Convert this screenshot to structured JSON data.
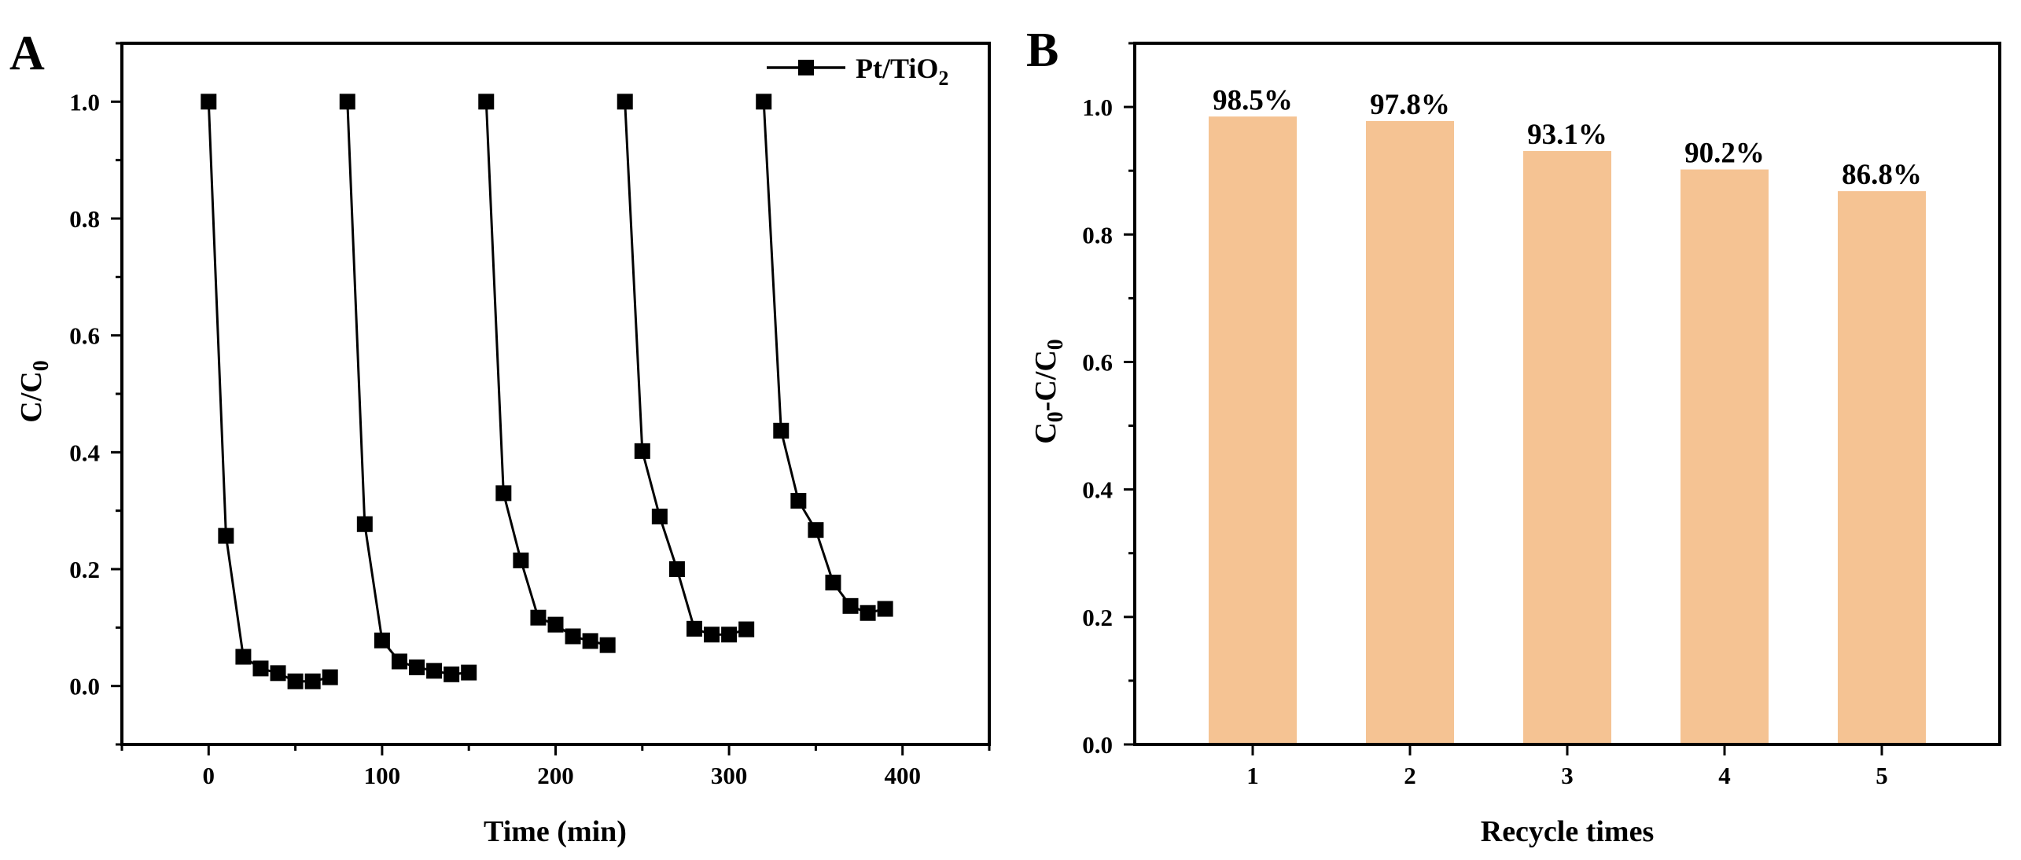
{
  "figure": {
    "panel_labels": [
      "A",
      "B"
    ]
  },
  "chart_data": [
    {
      "type": "line",
      "panel": "A",
      "xlabel": "Time (min)",
      "ylabel": {
        "main": "C/C",
        "sub": "0"
      },
      "xlim": [
        -50,
        450
      ],
      "ylim": [
        -0.1,
        1.1
      ],
      "xticks": [
        0,
        100,
        200,
        300,
        400
      ],
      "yticks": [
        0.0,
        0.2,
        0.4,
        0.6,
        0.8,
        1.0
      ],
      "xtick_labels": [
        "0",
        "100",
        "200",
        "300",
        "400"
      ],
      "ytick_labels": [
        "0.0",
        "0.2",
        "0.4",
        "0.6",
        "0.8",
        "1.0"
      ],
      "grid": false,
      "legend": {
        "position": "top-right",
        "main": "Pt/TiO",
        "sub": "2"
      },
      "series": [
        {
          "name": "Pt/TiO2",
          "color": "#000000",
          "marker": "square",
          "segments": [
            {
              "x": [
                0,
                10,
                20,
                30,
                40,
                50,
                60,
                70
              ],
              "y": [
                1.0,
                0.257,
                0.05,
                0.03,
                0.022,
                0.008,
                0.008,
                0.015
              ]
            },
            {
              "x": [
                80,
                90,
                100,
                110,
                120,
                130,
                140,
                150
              ],
              "y": [
                1.0,
                0.277,
                0.078,
                0.042,
                0.032,
                0.026,
                0.02,
                0.023
              ]
            },
            {
              "x": [
                160,
                170,
                180,
                190,
                200,
                210,
                220,
                230
              ],
              "y": [
                1.0,
                0.33,
                0.215,
                0.117,
                0.105,
                0.085,
                0.077,
                0.07
              ]
            },
            {
              "x": [
                240,
                250,
                260,
                270,
                280,
                290,
                300,
                310
              ],
              "y": [
                1.0,
                0.402,
                0.29,
                0.2,
                0.098,
                0.088,
                0.088,
                0.097
              ]
            },
            {
              "x": [
                320,
                330,
                340,
                350,
                360,
                370,
                380,
                390
              ],
              "y": [
                1.0,
                0.437,
                0.317,
                0.267,
                0.177,
                0.137,
                0.125,
                0.132
              ]
            }
          ]
        }
      ]
    },
    {
      "type": "bar",
      "panel": "B",
      "xlabel": "Recycle times",
      "ylabel": {
        "p1": "C",
        "s1": "0",
        "p2": "-C/C",
        "s2": "0"
      },
      "categories": [
        "1",
        "2",
        "3",
        "4",
        "5"
      ],
      "values": [
        0.985,
        0.978,
        0.931,
        0.902,
        0.868
      ],
      "data_labels": [
        "98.5%",
        "97.8%",
        "93.1%",
        "90.2%",
        "86.8%"
      ],
      "ylim": [
        0.0,
        1.1
      ],
      "yticks": [
        0.0,
        0.2,
        0.4,
        0.6,
        0.8,
        1.0
      ],
      "ytick_labels": [
        "0.0",
        "0.2",
        "0.4",
        "0.6",
        "0.8",
        "1.0"
      ],
      "bar_color": "#F5C393",
      "grid": false
    }
  ]
}
